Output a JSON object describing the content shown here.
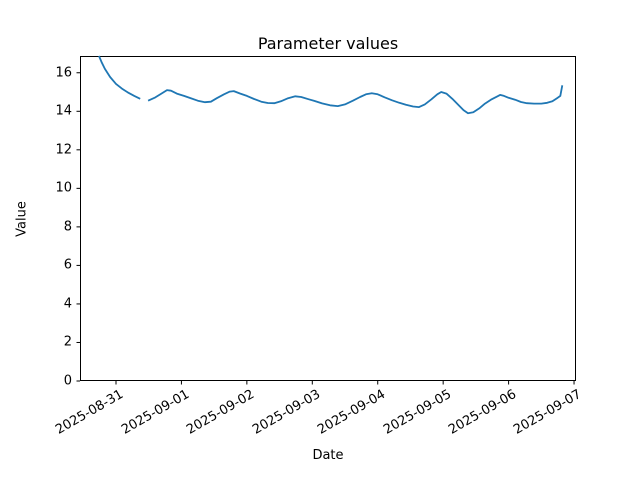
{
  "chart": {
    "title": "Parameter values",
    "xlabel": "Date",
    "ylabel": "Value",
    "line_color": "#1f77b4",
    "background_color": "#ffffff",
    "axis_color": "#000000"
  },
  "chart_data": {
    "type": "line",
    "title": "Parameter values",
    "xlabel": "Date",
    "ylabel": "Value",
    "grid": false,
    "legend": false,
    "x_unit": "days since 2025-08-31",
    "x_tick_labels": [
      "2025-08-31",
      "2025-09-01",
      "2025-09-02",
      "2025-09-03",
      "2025-09-04",
      "2025-09-05",
      "2025-09-06",
      "2025-09-07"
    ],
    "y_ticks": [
      0,
      2,
      4,
      6,
      8,
      10,
      12,
      14,
      16
    ],
    "xlim": [
      -0.55,
      7.03
    ],
    "ylim": [
      0,
      16.87
    ],
    "series": [
      {
        "name": "parameter-values",
        "color": "#1f77b4",
        "gap_note": "null entry marks a break (missing data) in the line",
        "points": [
          [
            -0.26,
            16.87
          ],
          [
            -0.22,
            16.55
          ],
          [
            -0.17,
            16.2
          ],
          [
            -0.09,
            15.78
          ],
          [
            0,
            15.42
          ],
          [
            0.09,
            15.18
          ],
          [
            0.18,
            14.98
          ],
          [
            0.28,
            14.8
          ],
          [
            0.37,
            14.65
          ],
          null,
          [
            0.49,
            14.55
          ],
          [
            0.6,
            14.72
          ],
          [
            0.7,
            14.93
          ],
          [
            0.78,
            15.1
          ],
          [
            0.84,
            15.07
          ],
          [
            0.93,
            14.92
          ],
          [
            1.04,
            14.8
          ],
          [
            1.15,
            14.67
          ],
          [
            1.25,
            14.55
          ],
          [
            1.36,
            14.47
          ],
          [
            1.45,
            14.5
          ],
          [
            1.54,
            14.68
          ],
          [
            1.65,
            14.88
          ],
          [
            1.74,
            15.02
          ],
          [
            1.8,
            15.05
          ],
          [
            1.9,
            14.92
          ],
          [
            2.0,
            14.8
          ],
          [
            2.11,
            14.64
          ],
          [
            2.22,
            14.5
          ],
          [
            2.32,
            14.43
          ],
          [
            2.42,
            14.42
          ],
          [
            2.52,
            14.52
          ],
          [
            2.63,
            14.68
          ],
          [
            2.74,
            14.78
          ],
          [
            2.83,
            14.74
          ],
          [
            2.94,
            14.63
          ],
          [
            3.03,
            14.54
          ],
          [
            3.15,
            14.41
          ],
          [
            3.27,
            14.31
          ],
          [
            3.39,
            14.27
          ],
          [
            3.5,
            14.36
          ],
          [
            3.62,
            14.55
          ],
          [
            3.73,
            14.74
          ],
          [
            3.82,
            14.88
          ],
          [
            3.91,
            14.94
          ],
          [
            4.0,
            14.88
          ],
          [
            4.11,
            14.72
          ],
          [
            4.22,
            14.57
          ],
          [
            4.33,
            14.44
          ],
          [
            4.43,
            14.34
          ],
          [
            4.54,
            14.25
          ],
          [
            4.63,
            14.22
          ],
          [
            4.72,
            14.36
          ],
          [
            4.82,
            14.62
          ],
          [
            4.91,
            14.88
          ],
          [
            4.97,
            15.0
          ],
          [
            5.05,
            14.92
          ],
          [
            5.14,
            14.65
          ],
          [
            5.23,
            14.34
          ],
          [
            5.31,
            14.06
          ],
          [
            5.38,
            13.9
          ],
          [
            5.46,
            13.95
          ],
          [
            5.55,
            14.15
          ],
          [
            5.64,
            14.4
          ],
          [
            5.73,
            14.6
          ],
          [
            5.83,
            14.78
          ],
          [
            5.87,
            14.85
          ],
          [
            5.93,
            14.8
          ],
          [
            6.0,
            14.7
          ],
          [
            6.1,
            14.6
          ],
          [
            6.19,
            14.48
          ],
          [
            6.28,
            14.42
          ],
          [
            6.39,
            14.4
          ],
          [
            6.5,
            14.4
          ],
          [
            6.59,
            14.44
          ],
          [
            6.67,
            14.52
          ],
          [
            6.74,
            14.68
          ],
          [
            6.79,
            14.8
          ],
          [
            6.82,
            15.35
          ]
        ]
      }
    ]
  }
}
